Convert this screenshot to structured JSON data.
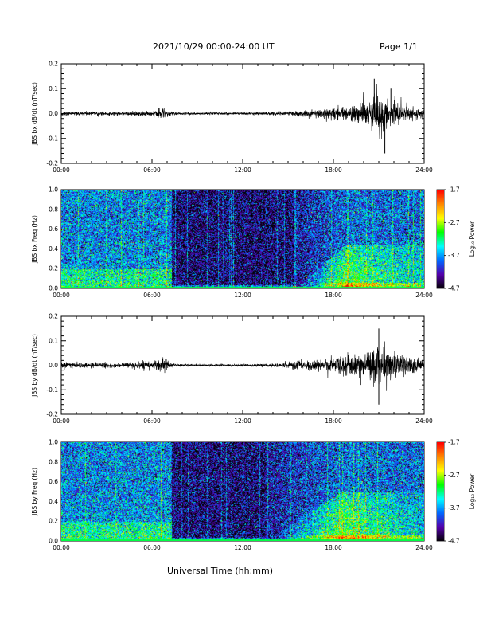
{
  "header": {
    "title": "2021/10/29  00:00-24:00 UT",
    "page": "Page 1/1"
  },
  "xlabel": "Universal Time (hh:mm)",
  "colorbar": {
    "label": "Log₁₀ Power",
    "ticks": [
      "-1.7",
      "-2.7",
      "-3.7",
      "-4.7"
    ],
    "colors": [
      "#ff0000",
      "#ff8800",
      "#ffff00",
      "#00ff00",
      "#00ffff",
      "#0066ff",
      "#5500aa",
      "#000000"
    ]
  },
  "chart_data": [
    {
      "type": "line",
      "ylabel": "JBS bx dB/dt (nT/sec)",
      "xlim": [
        "00:00",
        "24:00"
      ],
      "xticks": [
        "00:00",
        "06:00",
        "12:00",
        "18:00",
        "24:00"
      ],
      "ylim": [
        -0.2,
        0.2
      ],
      "yticks": [
        "0.2",
        "0.1",
        "0.0",
        "-0.1",
        "-0.2"
      ],
      "envelope": {
        "x_hours": [
          0,
          2,
          4,
          6,
          6.8,
          7.2,
          7.6,
          9,
          12,
          15,
          16,
          17,
          18,
          19,
          20,
          20.5,
          21,
          21.5,
          22,
          23,
          24
        ],
        "amplitude": [
          0.006,
          0.006,
          0.006,
          0.007,
          0.018,
          0.008,
          0.004,
          0.004,
          0.004,
          0.006,
          0.01,
          0.015,
          0.02,
          0.028,
          0.035,
          0.05,
          0.07,
          0.06,
          0.04,
          0.02,
          0.015
        ]
      },
      "peaks": [
        {
          "x_hours": 20.7,
          "y": 0.14
        },
        {
          "x_hours": 21.4,
          "y": -0.16
        },
        {
          "x_hours": 21.8,
          "y": 0.1
        }
      ]
    },
    {
      "type": "heatmap",
      "ylabel": "JBS bx Freq (Hz)",
      "xlim": [
        "00:00",
        "24:00"
      ],
      "xticks": [
        "00:00",
        "06:00",
        "12:00",
        "18:00",
        "24:00"
      ],
      "ylim": [
        0.0,
        1.0
      ],
      "yticks": [
        "1.0",
        "0.8",
        "0.6",
        "0.4",
        "0.2",
        "0.0"
      ],
      "zlim": [
        -4.7,
        -1.7
      ],
      "zlabel": "Log₁₀ Power",
      "features": {
        "quiet_start_hours": 7.3,
        "quiet_end_hours": 15.5,
        "storm_peak_hours": 18.8,
        "storm_top_freq": 0.45
      }
    },
    {
      "type": "line",
      "ylabel": "JBS by dB/dt (nT/sec)",
      "xlim": [
        "00:00",
        "24:00"
      ],
      "xticks": [
        "00:00",
        "06:00",
        "12:00",
        "18:00",
        "24:00"
      ],
      "ylim": [
        -0.2,
        0.2
      ],
      "yticks": [
        "0.2",
        "0.1",
        "0.0",
        "-0.1",
        "-0.2"
      ],
      "envelope": {
        "x_hours": [
          0,
          2,
          4,
          5.2,
          5.4,
          6,
          6.8,
          7.2,
          7.6,
          9,
          12,
          14,
          15,
          16,
          17,
          18,
          19,
          20,
          20.5,
          21,
          21.5,
          22,
          23,
          24
        ],
        "amplitude": [
          0.01,
          0.009,
          0.008,
          0.012,
          0.02,
          0.01,
          0.022,
          0.01,
          0.004,
          0.004,
          0.004,
          0.006,
          0.01,
          0.015,
          0.02,
          0.025,
          0.035,
          0.04,
          0.05,
          0.07,
          0.05,
          0.04,
          0.03,
          0.025
        ]
      },
      "peaks": [
        {
          "x_hours": 21.0,
          "y": 0.15
        },
        {
          "x_hours": 21.0,
          "y": -0.16
        },
        {
          "x_hours": 19.8,
          "y": -0.08
        }
      ]
    },
    {
      "type": "heatmap",
      "ylabel": "JBS by Freq (Hz)",
      "xlim": [
        "00:00",
        "24:00"
      ],
      "xticks": [
        "00:00",
        "06:00",
        "12:00",
        "18:00",
        "24:00"
      ],
      "ylim": [
        0.0,
        1.0
      ],
      "yticks": [
        "1.0",
        "0.8",
        "0.6",
        "0.4",
        "0.2",
        "0.0"
      ],
      "zlim": [
        -4.7,
        -1.7
      ],
      "zlabel": "Log₁₀ Power",
      "features": {
        "quiet_start_hours": 7.3,
        "quiet_end_hours": 13.5,
        "storm_peak_hours": 18.5,
        "storm_top_freq": 0.5
      }
    }
  ]
}
